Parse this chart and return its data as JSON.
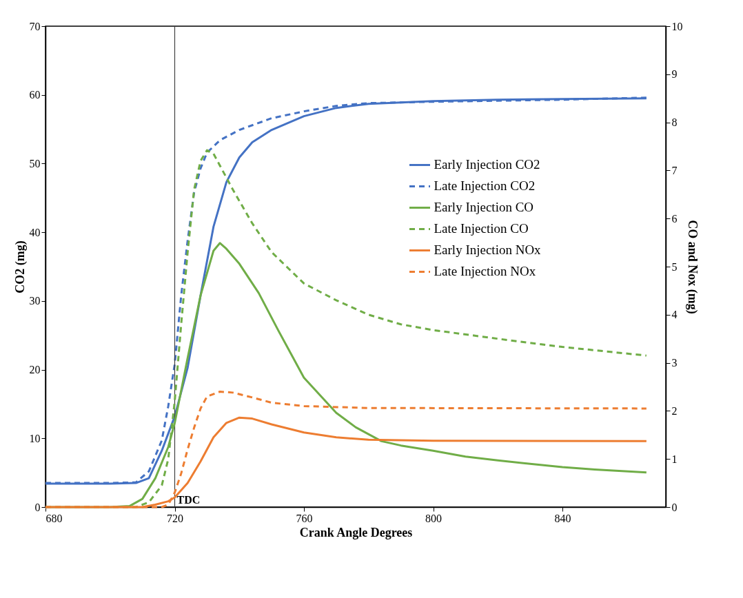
{
  "chart_data": {
    "type": "line",
    "xlabel": "Crank Angle Degrees",
    "ylabel": "CO2 (mg)",
    "y2label": "CO and Nox (mg)",
    "xlim": [
      680,
      872
    ],
    "xticks": [
      680,
      720,
      760,
      800,
      840
    ],
    "ylim": [
      0,
      70
    ],
    "yticks": [
      0,
      10,
      20,
      30,
      40,
      50,
      60,
      70
    ],
    "y2lim": [
      0,
      10
    ],
    "y2ticks": [
      0,
      1,
      2,
      3,
      4,
      5,
      6,
      7,
      8,
      9,
      10
    ],
    "grid": false,
    "legend": "right",
    "marker": "none",
    "ref_lines": [
      {
        "axis": "x",
        "value": 720,
        "label": "TDC",
        "color": "#404040"
      }
    ],
    "series": [
      {
        "name": "Early Injection CO2",
        "color": "#4472c4",
        "line_style": "solid",
        "x": [
          680,
          700,
          708,
          712,
          716,
          720,
          724,
          728,
          732,
          736,
          740,
          744,
          750,
          760,
          770,
          780,
          800,
          820,
          840,
          866
        ],
        "values": [
          3.4,
          3.4,
          3.5,
          4.2,
          8.2,
          13.2,
          20.3,
          30.8,
          40.8,
          47.3,
          50.9,
          53.1,
          54.9,
          56.9,
          58.1,
          58.7,
          59.1,
          59.3,
          59.4,
          59.5
        ]
      },
      {
        "name": "Late Injection CO2",
        "color": "#4472c4",
        "line_style": "dashed",
        "x": [
          680,
          700,
          708,
          712,
          716,
          718,
          720,
          722,
          724,
          726,
          728,
          730,
          734,
          740,
          750,
          760,
          770,
          780,
          800,
          840,
          866
        ],
        "values": [
          3.5,
          3.5,
          3.6,
          5.2,
          9.7,
          14.7,
          20.8,
          30.8,
          38.8,
          45.8,
          49.3,
          51.6,
          53.4,
          54.9,
          56.6,
          57.6,
          58.4,
          58.8,
          59.0,
          59.3,
          59.6
        ]
      },
      {
        "name": "Early Injection CO",
        "color": "#70ad47",
        "line_style": "solid",
        "axis": "y2",
        "x": [
          680,
          700,
          706,
          710,
          714,
          718,
          720,
          724,
          728,
          732,
          734,
          736,
          740,
          746,
          752,
          760,
          770,
          776,
          784,
          790,
          800,
          810,
          820,
          830,
          840,
          850,
          866
        ],
        "values": [
          0,
          0,
          0.02,
          0.17,
          0.6,
          1.25,
          1.75,
          3.1,
          4.4,
          5.33,
          5.49,
          5.37,
          5.06,
          4.45,
          3.68,
          2.69,
          1.96,
          1.66,
          1.37,
          1.28,
          1.17,
          1.05,
          0.97,
          0.9,
          0.83,
          0.78,
          0.72
        ]
      },
      {
        "name": "Late Injection CO",
        "color": "#70ad47",
        "line_style": "dashed",
        "axis": "y2",
        "x": [
          680,
          708,
          712,
          716,
          718,
          720,
          722,
          724,
          726,
          728,
          730,
          732,
          734,
          738,
          744,
          750,
          760,
          770,
          780,
          790,
          800,
          820,
          840,
          866
        ],
        "values": [
          0,
          0,
          0.1,
          0.45,
          1.0,
          2.2,
          3.8,
          5.3,
          6.6,
          7.2,
          7.42,
          7.35,
          7.1,
          6.6,
          5.9,
          5.3,
          4.65,
          4.3,
          4.0,
          3.8,
          3.68,
          3.5,
          3.33,
          3.15
        ]
      },
      {
        "name": "Early Injection NOx",
        "color": "#ed7d31",
        "line_style": "solid",
        "axis": "y2",
        "x": [
          680,
          710,
          714,
          718,
          720,
          724,
          728,
          732,
          736,
          740,
          744,
          750,
          760,
          770,
          780,
          800,
          866
        ],
        "values": [
          0,
          0,
          0.05,
          0.12,
          0.2,
          0.5,
          0.95,
          1.45,
          1.75,
          1.86,
          1.84,
          1.72,
          1.55,
          1.45,
          1.4,
          1.38,
          1.37
        ]
      },
      {
        "name": "Late Injection NOx",
        "color": "#ed7d31",
        "line_style": "dashed",
        "axis": "y2",
        "x": [
          680,
          716,
          718,
          720,
          722,
          724,
          726,
          728,
          730,
          734,
          738,
          744,
          750,
          760,
          780,
          866
        ],
        "values": [
          0,
          0,
          0.05,
          0.3,
          0.7,
          1.2,
          1.65,
          2.05,
          2.3,
          2.4,
          2.38,
          2.28,
          2.17,
          2.1,
          2.06,
          2.05
        ]
      }
    ]
  }
}
